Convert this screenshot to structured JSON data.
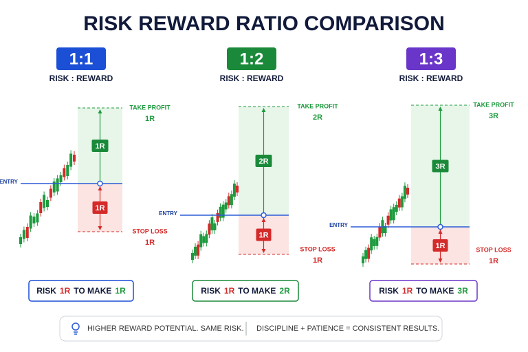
{
  "title": "RISK REWARD RATIO COMPARISON",
  "panels": [
    {
      "ratio": "1:1",
      "subtitle": "RISK : REWARD",
      "take_profit_label": "TAKE PROFIT",
      "take_profit_value": "1R",
      "reward_box": "1R",
      "entry_label": "ENTRY",
      "risk_box": "1R",
      "stop_loss_label": "STOP LOSS",
      "stop_loss_value": "1R",
      "summary": {
        "risk_word": "RISK",
        "risk_value": "1R",
        "middle": "TO MAKE",
        "reward_value": "1R"
      }
    },
    {
      "ratio": "1:2",
      "subtitle": "RISK : REWARD",
      "take_profit_label": "TAKE PROFIT",
      "take_profit_value": "2R",
      "reward_box": "2R",
      "entry_label": "ENTRY",
      "risk_box": "1R",
      "stop_loss_label": "STOP LOSS",
      "stop_loss_value": "1R",
      "summary": {
        "risk_word": "RISK",
        "risk_value": "1R",
        "middle": "TO MAKE",
        "reward_value": "2R"
      }
    },
    {
      "ratio": "1:3",
      "subtitle": "RISK : REWARD",
      "take_profit_label": "TAKE PROFIT",
      "take_profit_value": "3R",
      "reward_box": "3R",
      "entry_label": "ENTRY",
      "risk_box": "1R",
      "stop_loss_label": "STOP LOSS",
      "stop_loss_value": "1R",
      "summary": {
        "risk_word": "RISK",
        "risk_value": "1R",
        "middle": "TO MAKE",
        "reward_value": "3R"
      }
    }
  ],
  "footer": {
    "left": "HIGHER REWARD POTENTIAL. SAME RISK.",
    "right": "DISCIPLINE + PATIENCE = CONSISTENT RESULTS."
  }
}
